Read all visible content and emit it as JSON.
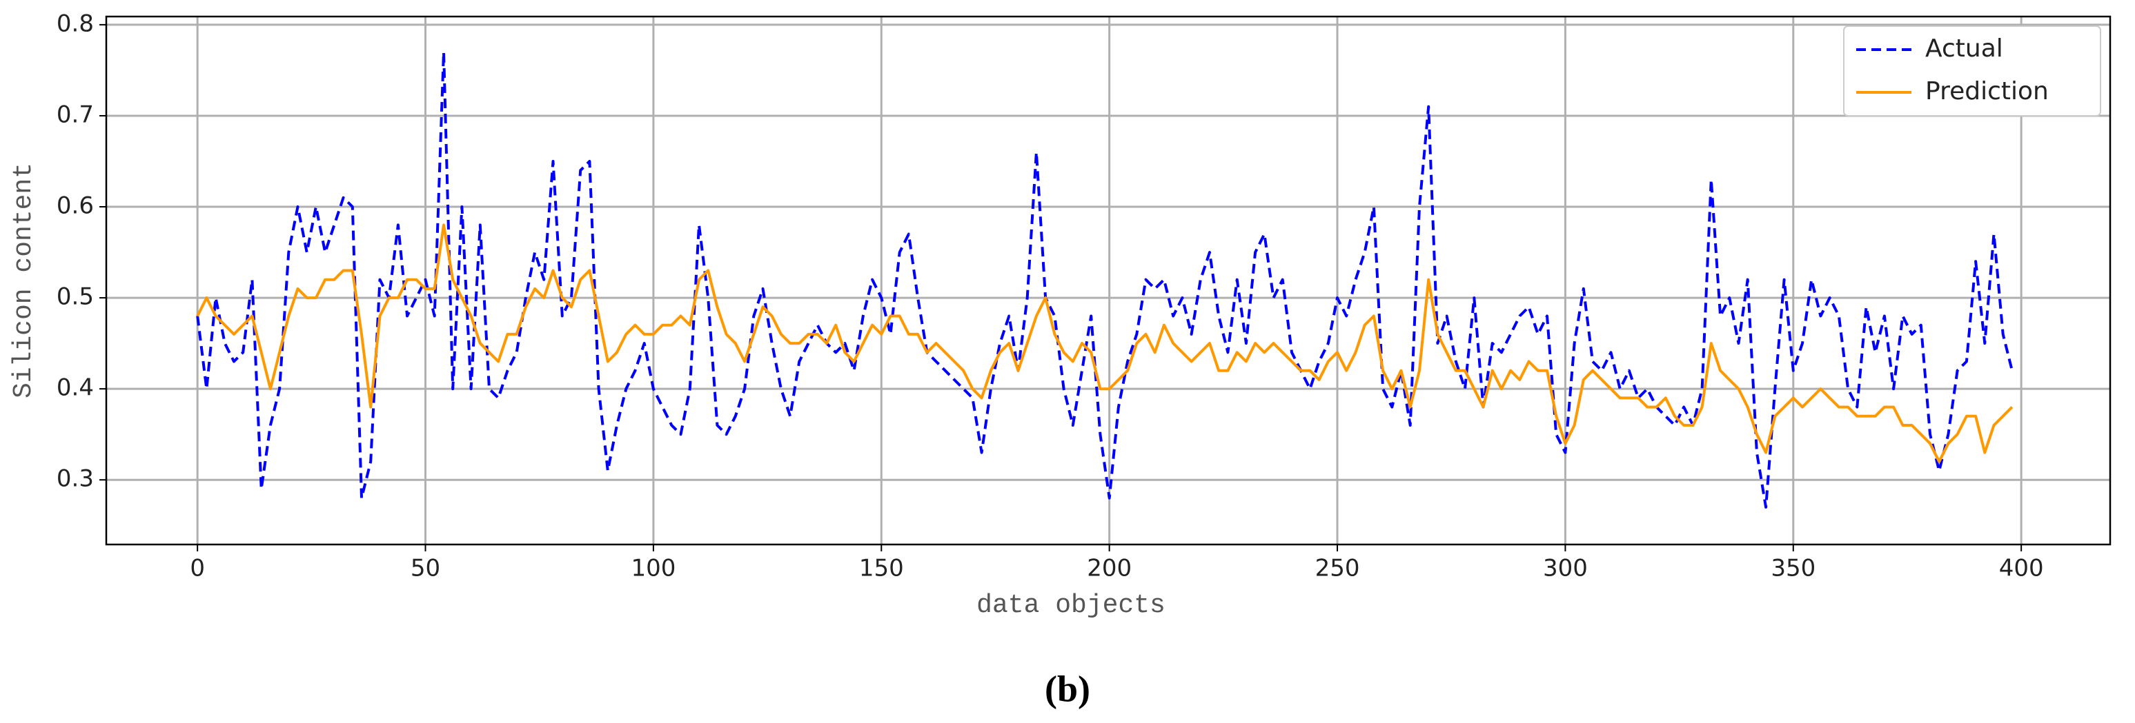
{
  "chart_data": {
    "type": "line",
    "x_label": "data objects",
    "y_label": "Silicon content",
    "caption": "(b)",
    "x": [
      0,
      2,
      4,
      6,
      8,
      10,
      12,
      14,
      16,
      18,
      20,
      22,
      24,
      26,
      28,
      30,
      32,
      34,
      36,
      38,
      40,
      42,
      44,
      46,
      48,
      50,
      52,
      54,
      56,
      58,
      60,
      62,
      64,
      66,
      68,
      70,
      72,
      74,
      76,
      78,
      80,
      82,
      84,
      86,
      88,
      90,
      92,
      94,
      96,
      98,
      100,
      102,
      104,
      106,
      108,
      110,
      112,
      114,
      116,
      118,
      120,
      122,
      124,
      126,
      128,
      130,
      132,
      134,
      136,
      138,
      140,
      142,
      144,
      146,
      148,
      150,
      152,
      154,
      156,
      158,
      160,
      162,
      164,
      166,
      168,
      170,
      172,
      174,
      176,
      178,
      180,
      182,
      184,
      186,
      188,
      190,
      192,
      194,
      196,
      198,
      200,
      202,
      204,
      206,
      208,
      210,
      212,
      214,
      216,
      218,
      220,
      222,
      224,
      226,
      228,
      230,
      232,
      234,
      236,
      238,
      240,
      242,
      244,
      246,
      248,
      250,
      252,
      254,
      256,
      258,
      260,
      262,
      264,
      266,
      268,
      270,
      272,
      274,
      276,
      278,
      280,
      282,
      284,
      286,
      288,
      290,
      292,
      294,
      296,
      298,
      300,
      302,
      304,
      306,
      308,
      310,
      312,
      314,
      316,
      318,
      320,
      322,
      324,
      326,
      328,
      330,
      332,
      334,
      336,
      338,
      340,
      342,
      344,
      346,
      348,
      350,
      352,
      354,
      356,
      358,
      360,
      362,
      364,
      366,
      368,
      370,
      372,
      374,
      376,
      378,
      380,
      382,
      384,
      386,
      388,
      390,
      392,
      394,
      396,
      398
    ],
    "series": [
      {
        "name": "Actual",
        "color": "#0000ff",
        "dashed": true,
        "values": [
          0.48,
          0.4,
          0.5,
          0.45,
          0.43,
          0.44,
          0.52,
          0.29,
          0.36,
          0.4,
          0.55,
          0.6,
          0.55,
          0.6,
          0.55,
          0.58,
          0.61,
          0.6,
          0.28,
          0.32,
          0.52,
          0.5,
          0.58,
          0.48,
          0.5,
          0.52,
          0.48,
          0.77,
          0.4,
          0.6,
          0.4,
          0.58,
          0.4,
          0.39,
          0.42,
          0.44,
          0.5,
          0.55,
          0.52,
          0.65,
          0.48,
          0.5,
          0.64,
          0.65,
          0.4,
          0.31,
          0.36,
          0.4,
          0.42,
          0.45,
          0.4,
          0.38,
          0.36,
          0.35,
          0.4,
          0.58,
          0.5,
          0.36,
          0.35,
          0.37,
          0.4,
          0.48,
          0.51,
          0.45,
          0.4,
          0.37,
          0.43,
          0.45,
          0.47,
          0.45,
          0.44,
          0.45,
          0.42,
          0.48,
          0.52,
          0.5,
          0.46,
          0.55,
          0.57,
          0.5,
          0.44,
          0.43,
          0.42,
          0.41,
          0.4,
          0.39,
          0.33,
          0.4,
          0.45,
          0.48,
          0.42,
          0.5,
          0.66,
          0.5,
          0.48,
          0.4,
          0.36,
          0.42,
          0.48,
          0.35,
          0.28,
          0.38,
          0.43,
          0.46,
          0.52,
          0.51,
          0.52,
          0.48,
          0.5,
          0.46,
          0.52,
          0.55,
          0.48,
          0.44,
          0.52,
          0.45,
          0.55,
          0.57,
          0.5,
          0.52,
          0.44,
          0.42,
          0.4,
          0.43,
          0.45,
          0.5,
          0.48,
          0.52,
          0.55,
          0.6,
          0.4,
          0.38,
          0.42,
          0.36,
          0.6,
          0.71,
          0.45,
          0.48,
          0.43,
          0.4,
          0.5,
          0.38,
          0.45,
          0.44,
          0.46,
          0.48,
          0.49,
          0.46,
          0.48,
          0.35,
          0.33,
          0.45,
          0.51,
          0.43,
          0.42,
          0.44,
          0.4,
          0.42,
          0.39,
          0.4,
          0.38,
          0.37,
          0.36,
          0.38,
          0.36,
          0.4,
          0.63,
          0.48,
          0.5,
          0.45,
          0.52,
          0.33,
          0.27,
          0.4,
          0.52,
          0.42,
          0.45,
          0.52,
          0.48,
          0.5,
          0.48,
          0.4,
          0.38,
          0.49,
          0.44,
          0.48,
          0.4,
          0.48,
          0.46,
          0.47,
          0.35,
          0.31,
          0.35,
          0.42,
          0.43,
          0.54,
          0.45,
          0.57,
          0.46,
          0.42
        ]
      },
      {
        "name": "Prediction",
        "color": "#ff9900",
        "dashed": false,
        "values": [
          0.48,
          0.5,
          0.48,
          0.47,
          0.46,
          0.47,
          0.48,
          0.44,
          0.4,
          0.44,
          0.48,
          0.51,
          0.5,
          0.5,
          0.52,
          0.52,
          0.53,
          0.53,
          0.46,
          0.38,
          0.48,
          0.5,
          0.5,
          0.52,
          0.52,
          0.51,
          0.51,
          0.58,
          0.52,
          0.5,
          0.48,
          0.45,
          0.44,
          0.43,
          0.46,
          0.46,
          0.49,
          0.51,
          0.5,
          0.53,
          0.5,
          0.49,
          0.52,
          0.53,
          0.48,
          0.43,
          0.44,
          0.46,
          0.47,
          0.46,
          0.46,
          0.47,
          0.47,
          0.48,
          0.47,
          0.52,
          0.53,
          0.49,
          0.46,
          0.45,
          0.43,
          0.46,
          0.49,
          0.48,
          0.46,
          0.45,
          0.45,
          0.46,
          0.46,
          0.45,
          0.47,
          0.44,
          0.43,
          0.45,
          0.47,
          0.46,
          0.48,
          0.48,
          0.46,
          0.46,
          0.44,
          0.45,
          0.44,
          0.43,
          0.42,
          0.4,
          0.39,
          0.42,
          0.44,
          0.45,
          0.42,
          0.45,
          0.48,
          0.5,
          0.46,
          0.44,
          0.43,
          0.45,
          0.44,
          0.4,
          0.4,
          0.41,
          0.42,
          0.45,
          0.46,
          0.44,
          0.47,
          0.45,
          0.44,
          0.43,
          0.44,
          0.45,
          0.42,
          0.42,
          0.44,
          0.43,
          0.45,
          0.44,
          0.45,
          0.44,
          0.43,
          0.42,
          0.42,
          0.41,
          0.43,
          0.44,
          0.42,
          0.44,
          0.47,
          0.48,
          0.42,
          0.4,
          0.42,
          0.38,
          0.42,
          0.52,
          0.46,
          0.44,
          0.42,
          0.42,
          0.4,
          0.38,
          0.42,
          0.4,
          0.42,
          0.41,
          0.43,
          0.42,
          0.42,
          0.37,
          0.34,
          0.36,
          0.41,
          0.42,
          0.41,
          0.4,
          0.39,
          0.39,
          0.39,
          0.38,
          0.38,
          0.39,
          0.37,
          0.36,
          0.36,
          0.38,
          0.45,
          0.42,
          0.41,
          0.4,
          0.38,
          0.35,
          0.33,
          0.37,
          0.38,
          0.39,
          0.38,
          0.39,
          0.4,
          0.39,
          0.38,
          0.38,
          0.37,
          0.37,
          0.37,
          0.38,
          0.38,
          0.36,
          0.36,
          0.35,
          0.34,
          0.32,
          0.34,
          0.35,
          0.37,
          0.37,
          0.33,
          0.36,
          0.37,
          0.38
        ]
      }
    ],
    "xlim": [
      -20,
      419.5
    ],
    "ylim": [
      0.229,
      0.809
    ],
    "xticks": [
      0,
      50,
      100,
      150,
      200,
      250,
      300,
      350,
      400
    ],
    "yticks": [
      0.3,
      0.4,
      0.5,
      0.6,
      0.7,
      0.8
    ],
    "grid": true,
    "legend": "upper right"
  }
}
